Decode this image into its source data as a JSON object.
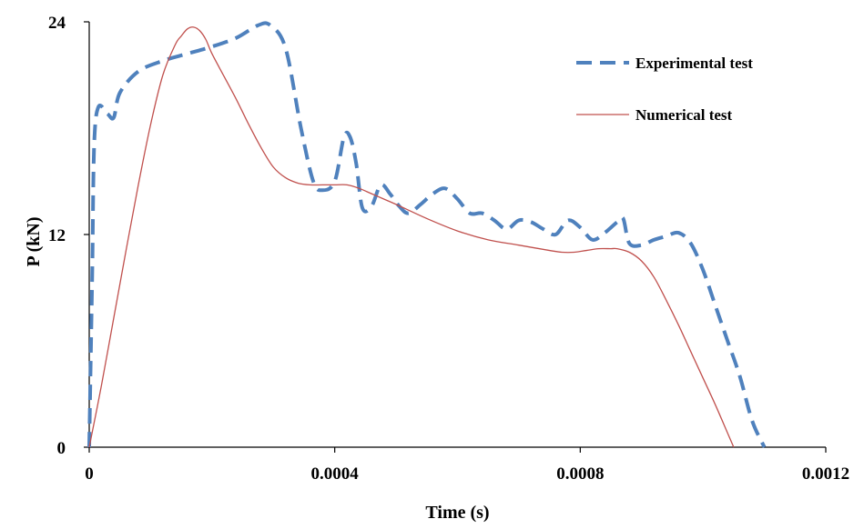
{
  "chart_data": {
    "type": "line",
    "xlabel": "Time (s)",
    "ylabel": "P (kN)",
    "xlim": [
      0,
      0.0012
    ],
    "ylim": [
      0,
      24
    ],
    "xticks": [
      0,
      0.0004,
      0.0008,
      0.0012
    ],
    "xtick_labels": [
      "0",
      "0.0004",
      "0.0008",
      "0.0012"
    ],
    "yticks": [
      0,
      12,
      24
    ],
    "ytick_labels": [
      "0",
      "12",
      "24"
    ],
    "grid": false,
    "legend_position": "top-right",
    "series": [
      {
        "name": "Experimental test",
        "style": "dashed",
        "color": "#4f81bd",
        "x": [
          0,
          2e-06,
          5e-06,
          8e-06,
          1.5e-05,
          3e-05,
          4e-05,
          5e-05,
          8e-05,
          0.00012,
          0.00016,
          0.0002,
          0.00024,
          0.000275,
          0.000295,
          0.00032,
          0.000345,
          0.000365,
          0.00038,
          0.0004,
          0.000415,
          0.000425,
          0.000435,
          0.000445,
          0.00046,
          0.000475,
          0.00049,
          0.000505,
          0.00052,
          0.00054,
          0.00056,
          0.00058,
          0.0006,
          0.00062,
          0.00064,
          0.00066,
          0.00068,
          0.0007,
          0.00072,
          0.00074,
          0.00076,
          0.00078,
          0.0008,
          0.00082,
          0.00084,
          0.00086,
          0.00087,
          0.00088,
          0.0009,
          0.00092,
          0.00094,
          0.00096,
          0.00098,
          0.001,
          0.00102,
          0.00104,
          0.00106,
          0.00108,
          0.0011
        ],
        "y": [
          0,
          4,
          10,
          17,
          19.2,
          18.8,
          18.6,
          20,
          21.2,
          21.8,
          22.2,
          22.6,
          23.1,
          23.8,
          23.8,
          22.5,
          18,
          15,
          14.5,
          15,
          17.5,
          17.5,
          16,
          13.5,
          13.6,
          14.8,
          14.3,
          13.6,
          13.2,
          13.7,
          14.3,
          14.6,
          14,
          13.2,
          13.2,
          12.8,
          12.3,
          12.8,
          12.7,
          12.3,
          12,
          12.8,
          12.4,
          11.7,
          12.1,
          12.7,
          12.9,
          11.5,
          11.4,
          11.7,
          11.9,
          12.1,
          11.5,
          10,
          8,
          6,
          4,
          1.5,
          0
        ]
      },
      {
        "name": "Numerical test",
        "style": "solid",
        "color": "#c0504d",
        "x": [
          0,
          2e-05,
          4e-05,
          6e-05,
          8e-05,
          0.0001,
          0.00012,
          0.00014,
          0.00015,
          0.00016,
          0.00017,
          0.00018,
          0.00019,
          0.0002,
          0.00022,
          0.00024,
          0.00026,
          0.00028,
          0.0003,
          0.00032,
          0.00034,
          0.00036,
          0.00038,
          0.0004,
          0.00042,
          0.00044,
          0.00046,
          0.00048,
          0.0005,
          0.00055,
          0.0006,
          0.00065,
          0.0007,
          0.00075,
          0.00077,
          0.00079,
          0.00081,
          0.00083,
          0.00085,
          0.00086,
          0.00088,
          0.0009,
          0.00092,
          0.00094,
          0.00096,
          0.00098,
          0.001,
          0.00102,
          0.00104,
          0.00105
        ],
        "y": [
          0,
          3.5,
          7.3,
          11.1,
          14.8,
          18.2,
          21,
          22.7,
          23.2,
          23.6,
          23.7,
          23.5,
          23,
          22.2,
          20.9,
          19.6,
          18.2,
          16.9,
          15.8,
          15.2,
          14.9,
          14.8,
          14.8,
          14.8,
          14.8,
          14.6,
          14.3,
          14,
          13.7,
          12.9,
          12.2,
          11.7,
          11.4,
          11.1,
          11,
          11,
          11.1,
          11.2,
          11.2,
          11.2,
          11,
          10.5,
          9.6,
          8.3,
          6.9,
          5.4,
          3.9,
          2.4,
          0.8,
          0
        ]
      }
    ]
  }
}
